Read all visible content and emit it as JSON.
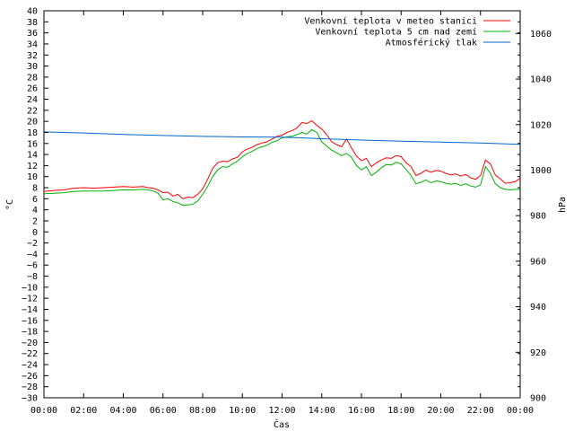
{
  "chart_data": {
    "type": "line",
    "title": "",
    "xlabel": "Čas",
    "ylabel": "°C",
    "y2label": "hPa",
    "x_ticks": [
      "00:00",
      "02:00",
      "04:00",
      "06:00",
      "08:00",
      "10:00",
      "12:00",
      "14:00",
      "16:00",
      "18:00",
      "20:00",
      "22:00",
      "00:00"
    ],
    "xlim_hours": [
      0,
      24
    ],
    "ylim": [
      -30,
      40
    ],
    "y_tick_step": 2,
    "y2lim": [
      900,
      1070
    ],
    "y2_ticks": [
      900,
      920,
      940,
      960,
      980,
      1000,
      1020,
      1040,
      1060
    ],
    "grid": false,
    "legend_position": "top-right",
    "series": [
      {
        "name": "Venkovní teplota v meteo stanici",
        "axis": "left",
        "color": "#ff0000",
        "x": [
          0,
          0.5,
          1,
          1.5,
          2,
          2.5,
          3,
          3.5,
          4,
          4.5,
          5,
          5.25,
          5.5,
          5.75,
          6,
          6.25,
          6.5,
          6.75,
          7,
          7.25,
          7.5,
          7.75,
          8,
          8.25,
          8.5,
          8.75,
          9,
          9.25,
          9.5,
          9.75,
          10,
          10.25,
          10.5,
          10.75,
          11,
          11.25,
          11.5,
          11.75,
          12,
          12.25,
          12.5,
          12.75,
          13,
          13.25,
          13.5,
          13.75,
          14,
          14.25,
          14.5,
          14.75,
          15,
          15.25,
          15.5,
          15.75,
          16,
          16.25,
          16.5,
          16.75,
          17,
          17.25,
          17.5,
          17.75,
          18,
          18.25,
          18.5,
          18.75,
          19,
          19.25,
          19.5,
          19.75,
          20,
          20.25,
          20.5,
          20.75,
          21,
          21.25,
          21.5,
          21.75,
          22,
          22.25,
          22.5,
          22.75,
          23,
          23.25,
          23.5,
          23.75,
          24
        ],
        "values": [
          7.3,
          7.5,
          7.6,
          7.9,
          8.0,
          7.9,
          8.0,
          8.1,
          8.2,
          8.1,
          8.2,
          8.0,
          7.9,
          7.6,
          7.1,
          7.2,
          6.5,
          6.8,
          6.0,
          6.3,
          6.2,
          6.8,
          7.8,
          9.5,
          11.5,
          12.5,
          12.8,
          12.7,
          13.2,
          13.5,
          14.5,
          15.0,
          15.3,
          15.8,
          16.1,
          16.3,
          16.8,
          17.3,
          17.5,
          18.0,
          18.3,
          18.8,
          19.8,
          19.6,
          20.1,
          19.3,
          18.6,
          17.6,
          16.3,
          15.8,
          15.4,
          16.8,
          15.2,
          13.7,
          12.9,
          13.3,
          11.8,
          12.5,
          13.0,
          13.4,
          13.3,
          13.8,
          13.6,
          12.5,
          11.8,
          10.2,
          10.6,
          11.2,
          10.8,
          11.1,
          11.0,
          10.6,
          10.3,
          10.5,
          10.1,
          10.4,
          9.8,
          9.5,
          10.2,
          13.0,
          12.3,
          10.3,
          9.6,
          8.8,
          8.9,
          9.1,
          9.7
        ]
      },
      {
        "name": "Venkovní teplota 5 cm nad zemí",
        "axis": "left",
        "color": "#00b000",
        "x": [
          0,
          0.5,
          1,
          1.5,
          2,
          2.5,
          3,
          3.5,
          4,
          4.5,
          5,
          5.25,
          5.5,
          5.75,
          6,
          6.25,
          6.5,
          6.75,
          7,
          7.25,
          7.5,
          7.75,
          8,
          8.25,
          8.5,
          8.75,
          9,
          9.25,
          9.5,
          9.75,
          10,
          10.25,
          10.5,
          10.75,
          11,
          11.25,
          11.5,
          11.75,
          12,
          12.25,
          12.5,
          12.75,
          13,
          13.25,
          13.5,
          13.75,
          14,
          14.25,
          14.5,
          14.75,
          15,
          15.25,
          15.5,
          15.75,
          16,
          16.25,
          16.5,
          16.75,
          17,
          17.25,
          17.5,
          17.75,
          18,
          18.25,
          18.5,
          18.75,
          19,
          19.25,
          19.5,
          19.75,
          20,
          20.25,
          20.5,
          20.75,
          21,
          21.25,
          21.5,
          21.75,
          22,
          22.25,
          22.5,
          22.75,
          23,
          23.25,
          23.5,
          23.75,
          24
        ],
        "values": [
          6.9,
          7.0,
          7.1,
          7.3,
          7.4,
          7.4,
          7.4,
          7.5,
          7.6,
          7.6,
          7.7,
          7.6,
          7.4,
          7.0,
          5.8,
          6.0,
          5.5,
          5.3,
          4.8,
          4.9,
          5.0,
          5.6,
          6.8,
          8.2,
          10.0,
          11.2,
          11.8,
          11.7,
          12.3,
          12.8,
          13.6,
          14.2,
          14.6,
          15.1,
          15.4,
          15.7,
          16.2,
          16.5,
          17.0,
          17.2,
          17.3,
          17.6,
          18.0,
          17.7,
          18.5,
          18.0,
          16.3,
          15.5,
          14.8,
          14.3,
          13.8,
          14.2,
          13.5,
          12.0,
          11.2,
          11.8,
          10.2,
          10.8,
          11.6,
          12.2,
          12.1,
          12.6,
          12.3,
          11.3,
          10.2,
          8.7,
          9.0,
          9.4,
          8.9,
          9.2,
          9.1,
          8.8,
          8.6,
          8.8,
          8.4,
          8.7,
          8.3,
          8.1,
          8.5,
          11.8,
          10.6,
          8.7,
          8.0,
          7.7,
          7.6,
          7.7,
          7.7
        ]
      },
      {
        "name": "Atmosférický tlak",
        "axis": "right",
        "color": "#0066cc",
        "x": [
          0,
          2,
          4,
          6,
          8,
          10,
          12,
          13,
          14,
          16,
          18,
          20,
          22,
          24
        ],
        "values": [
          1016.8,
          1016.3,
          1015.7,
          1015.2,
          1014.8,
          1014.6,
          1014.5,
          1014.2,
          1013.8,
          1013.2,
          1012.7,
          1012.3,
          1011.9,
          1011.3
        ]
      }
    ]
  }
}
